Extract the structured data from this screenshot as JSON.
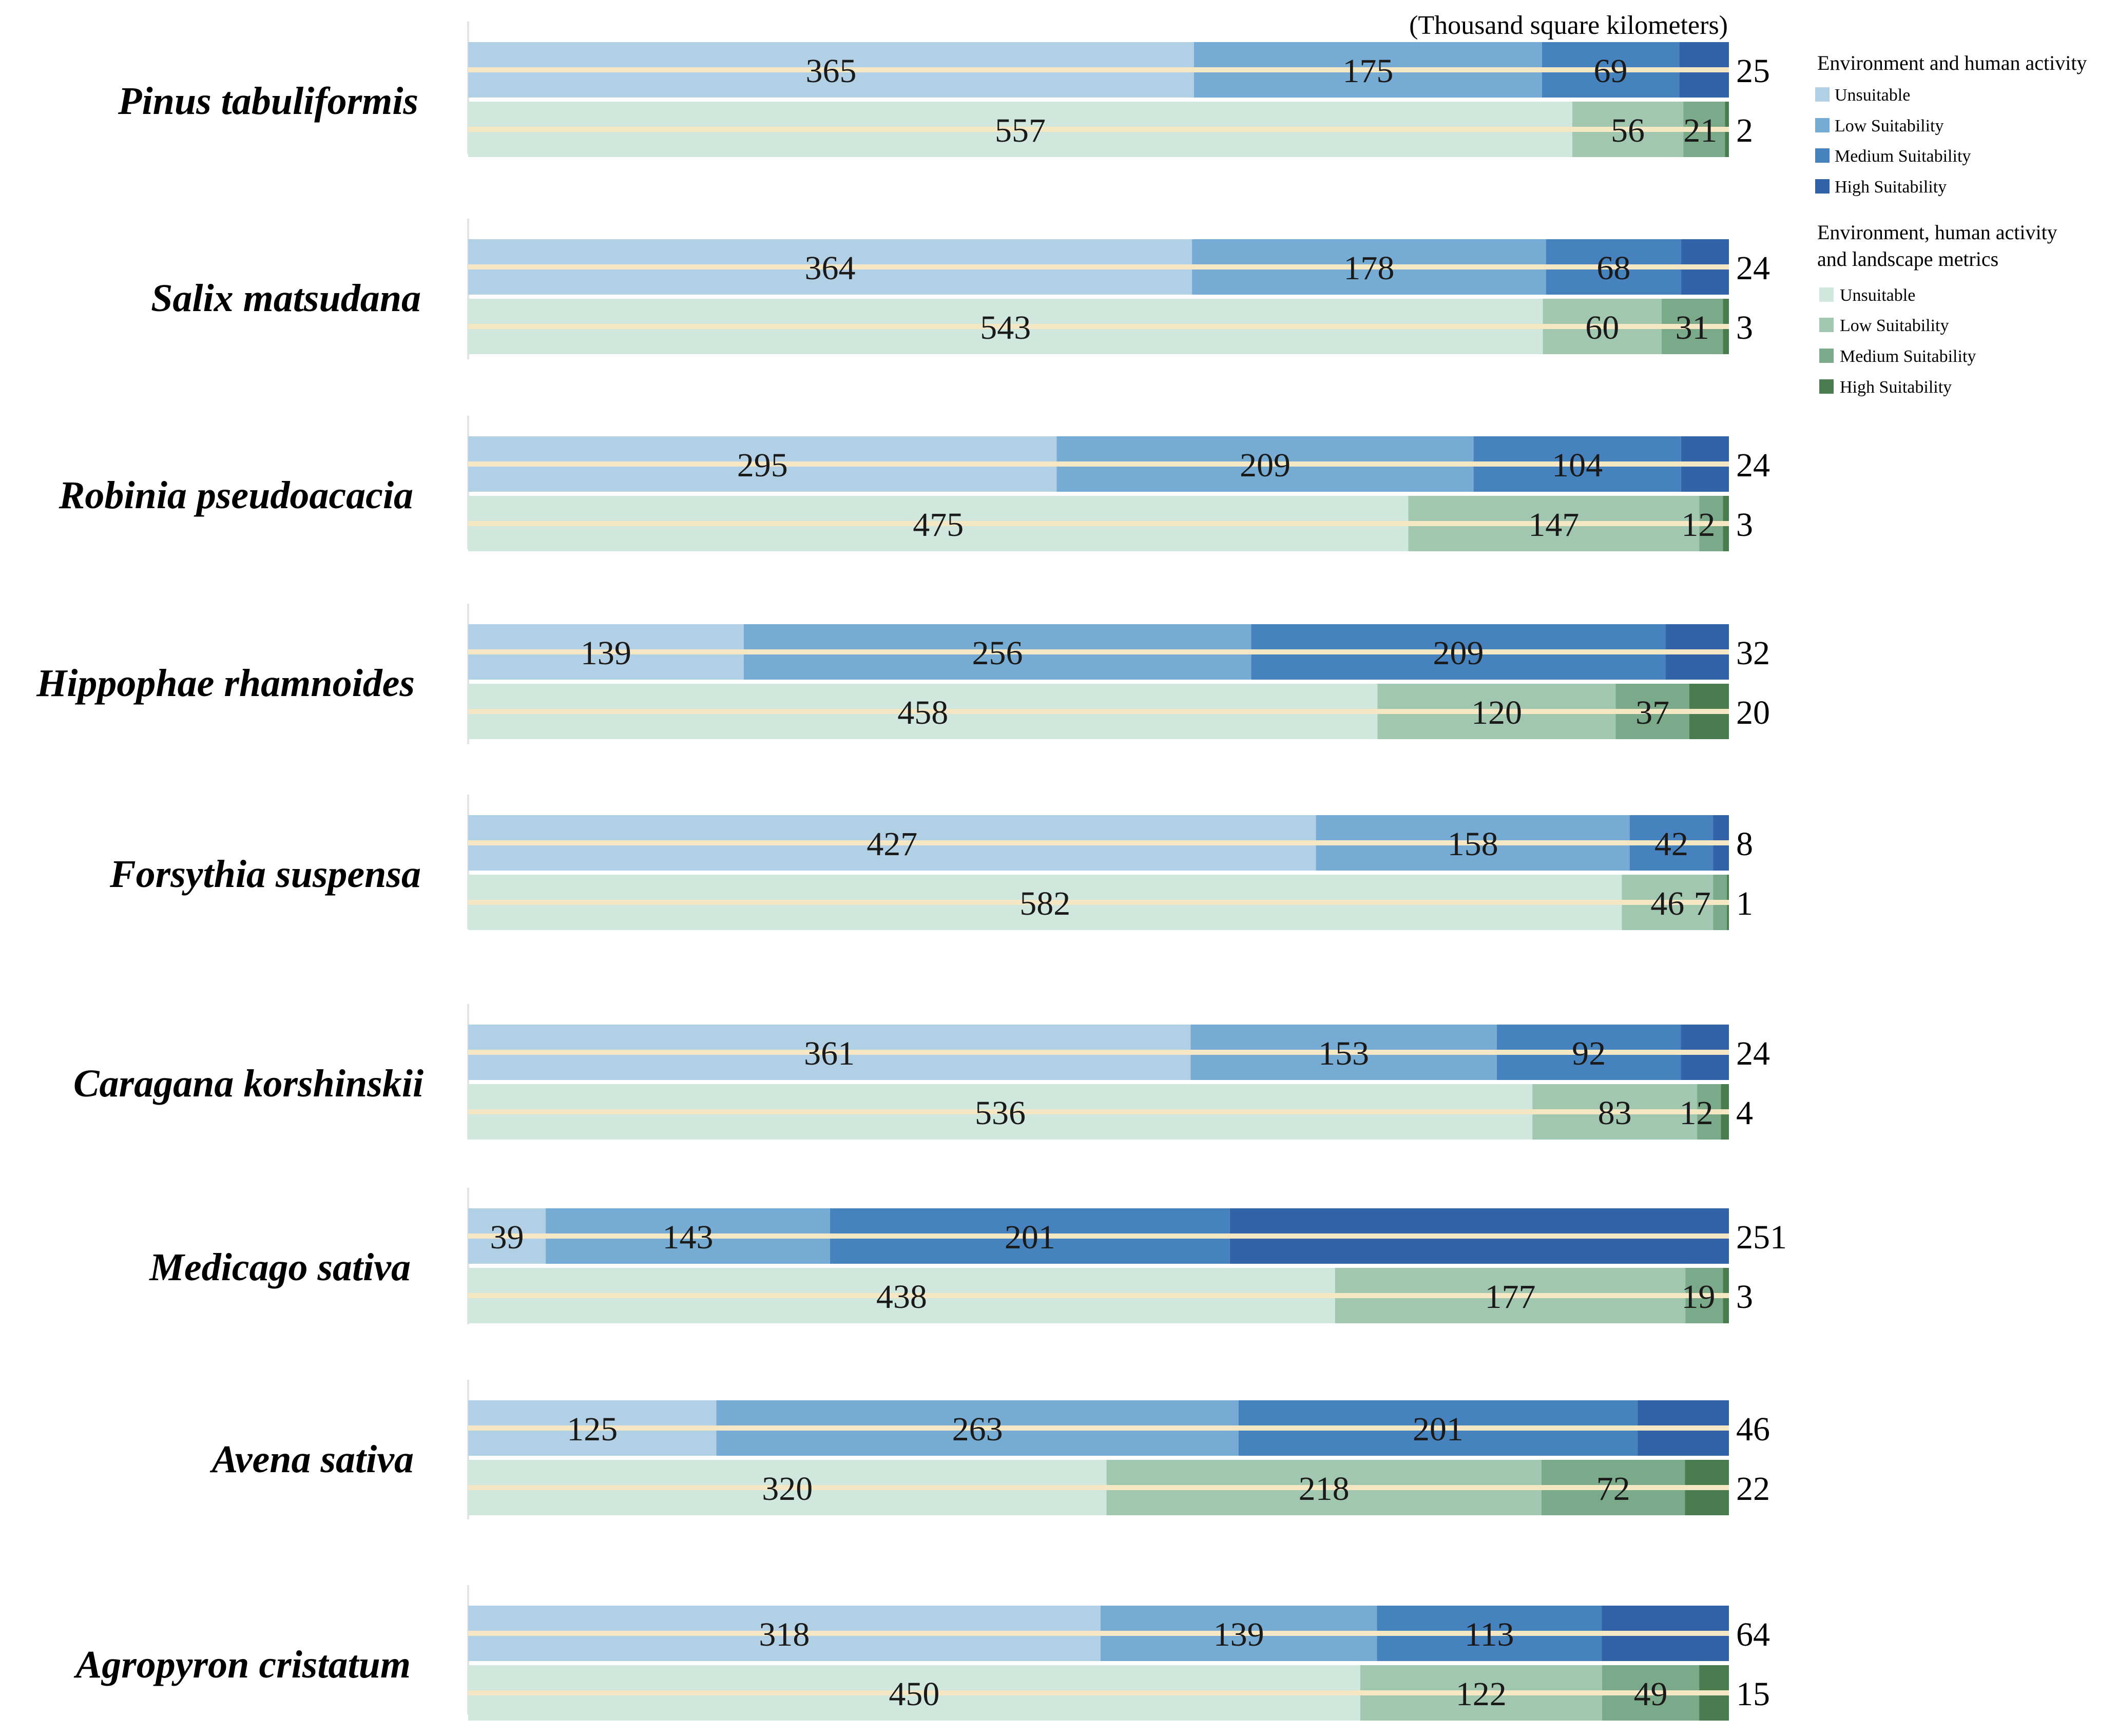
{
  "chart_data": {
    "type": "stacked-horizontal-bar",
    "title": "",
    "unit_label": "(Thousand square kilometers)",
    "categories": [
      "Pinus tabuliformis",
      "Salix matsudana",
      "Robinia pseudoacacia",
      "Hippophae rhamnoides",
      "Forsythia suspensa",
      "Caragana korshinskii",
      "Medicago sativa",
      "Avena sativa",
      "Agropyron cristatum"
    ],
    "segment_labels": [
      "Unsuitable",
      "Low Suitability",
      "Medium Suitability",
      "High Suitability"
    ],
    "groups": [
      {
        "name": "Environment and human activity",
        "colors": [
          "#b1d0e6",
          "#76acd3",
          "#4683be",
          "#3263a8"
        ],
        "values": [
          [
            365,
            175,
            69,
            25
          ],
          [
            364,
            178,
            68,
            24
          ],
          [
            295,
            209,
            104,
            24
          ],
          [
            139,
            256,
            209,
            32
          ],
          [
            427,
            158,
            42,
            8
          ],
          [
            361,
            153,
            92,
            24
          ],
          [
            39,
            143,
            201,
            251
          ],
          [
            125,
            263,
            201,
            46
          ],
          [
            318,
            139,
            113,
            64
          ]
        ]
      },
      {
        "name": "Environment, human activity and landscape metrics",
        "colors": [
          "#cfe7dd",
          "#a2c7b1",
          "#7aaa8a",
          "#4a7c50"
        ],
        "values": [
          [
            557,
            56,
            21,
            2
          ],
          [
            543,
            60,
            31,
            3
          ],
          [
            475,
            147,
            12,
            3
          ],
          [
            458,
            120,
            37,
            20
          ],
          [
            582,
            46,
            7,
            1
          ],
          [
            536,
            83,
            12,
            4
          ],
          [
            438,
            177,
            19,
            3
          ],
          [
            320,
            218,
            72,
            22
          ],
          [
            450,
            122,
            49,
            15
          ]
        ]
      }
    ],
    "centerline_color": "#f5e6c4"
  }
}
